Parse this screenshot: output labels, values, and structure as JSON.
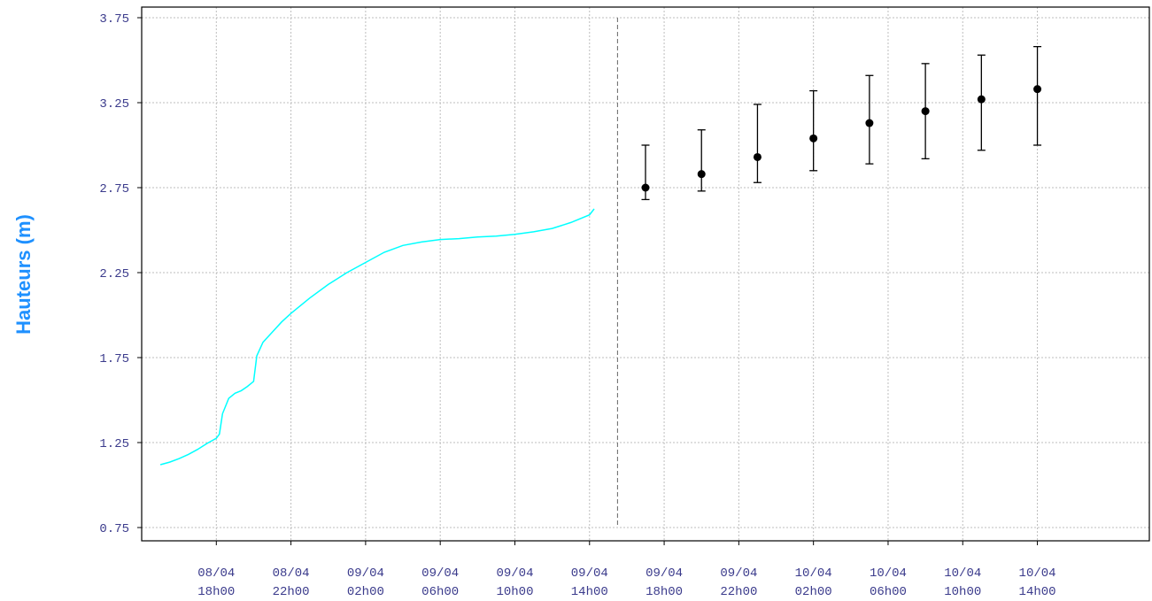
{
  "chart_data": {
    "type": "line",
    "title": "",
    "xlabel": "",
    "ylabel": "Hauteurs (m)",
    "ylim": [
      0.75,
      3.75
    ],
    "yticks": [
      0.75,
      1.25,
      1.75,
      2.25,
      2.75,
      3.25,
      3.75
    ],
    "xlim": [
      "2024-04-08T14:00",
      "2024-04-10T20:00"
    ],
    "xticks": [
      {
        "t": "2024-04-08T18:00",
        "label": [
          "08/04",
          "18h00"
        ]
      },
      {
        "t": "2024-04-08T22:00",
        "label": [
          "08/04",
          "22h00"
        ]
      },
      {
        "t": "2024-04-09T02:00",
        "label": [
          "09/04",
          "02h00"
        ]
      },
      {
        "t": "2024-04-09T06:00",
        "label": [
          "09/04",
          "06h00"
        ]
      },
      {
        "t": "2024-04-09T10:00",
        "label": [
          "09/04",
          "10h00"
        ]
      },
      {
        "t": "2024-04-09T14:00",
        "label": [
          "09/04",
          "14h00"
        ]
      },
      {
        "t": "2024-04-09T18:00",
        "label": [
          "09/04",
          "18h00"
        ]
      },
      {
        "t": "2024-04-09T22:00",
        "label": [
          "09/04",
          "22h00"
        ]
      },
      {
        "t": "2024-04-10T02:00",
        "label": [
          "10/04",
          "02h00"
        ]
      },
      {
        "t": "2024-04-10T06:00",
        "label": [
          "10/04",
          "06h00"
        ]
      },
      {
        "t": "2024-04-10T10:00",
        "label": [
          "10/04",
          "10h00"
        ]
      },
      {
        "t": "2024-04-10T14:00",
        "label": [
          "10/04",
          "14h00"
        ]
      }
    ],
    "grid": true,
    "forecast_start": "2024-04-09T15:30",
    "observed": {
      "color": "#00ffff",
      "points": [
        [
          "2024-04-08T15:00",
          1.12
        ],
        [
          "2024-04-08T15:30",
          1.135
        ],
        [
          "2024-04-08T16:00",
          1.155
        ],
        [
          "2024-04-08T16:30",
          1.18
        ],
        [
          "2024-04-08T17:00",
          1.21
        ],
        [
          "2024-04-08T17:30",
          1.245
        ],
        [
          "2024-04-08T18:00",
          1.275
        ],
        [
          "2024-04-08T18:10",
          1.3
        ],
        [
          "2024-04-08T18:20",
          1.42
        ],
        [
          "2024-04-08T18:40",
          1.51
        ],
        [
          "2024-04-08T19:00",
          1.54
        ],
        [
          "2024-04-08T19:20",
          1.555
        ],
        [
          "2024-04-08T19:40",
          1.58
        ],
        [
          "2024-04-08T20:00",
          1.61
        ],
        [
          "2024-04-08T20:10",
          1.76
        ],
        [
          "2024-04-08T20:30",
          1.84
        ],
        [
          "2024-04-08T21:00",
          1.9
        ],
        [
          "2024-04-08T21:30",
          1.96
        ],
        [
          "2024-04-08T22:00",
          2.01
        ],
        [
          "2024-04-08T23:00",
          2.1
        ],
        [
          "2024-04-09T00:00",
          2.18
        ],
        [
          "2024-04-09T01:00",
          2.25
        ],
        [
          "2024-04-09T02:00",
          2.31
        ],
        [
          "2024-04-09T03:00",
          2.37
        ],
        [
          "2024-04-09T04:00",
          2.41
        ],
        [
          "2024-04-09T05:00",
          2.43
        ],
        [
          "2024-04-09T06:00",
          2.445
        ],
        [
          "2024-04-09T07:00",
          2.45
        ],
        [
          "2024-04-09T08:00",
          2.46
        ],
        [
          "2024-04-09T09:00",
          2.465
        ],
        [
          "2024-04-09T10:00",
          2.475
        ],
        [
          "2024-04-09T11:00",
          2.49
        ],
        [
          "2024-04-09T12:00",
          2.51
        ],
        [
          "2024-04-09T13:00",
          2.545
        ],
        [
          "2024-04-09T14:00",
          2.59
        ],
        [
          "2024-04-09T14:15",
          2.625
        ]
      ]
    },
    "forecast": {
      "color": "#000000",
      "points": [
        {
          "t": "2024-04-09T17:00",
          "y": 2.75,
          "low": 2.68,
          "high": 3.0
        },
        {
          "t": "2024-04-09T20:00",
          "y": 2.83,
          "low": 2.73,
          "high": 3.09
        },
        {
          "t": "2024-04-09T23:00",
          "y": 2.93,
          "low": 2.78,
          "high": 3.24
        },
        {
          "t": "2024-04-10T02:00",
          "y": 3.04,
          "low": 2.85,
          "high": 3.32
        },
        {
          "t": "2024-04-10T05:00",
          "y": 3.13,
          "low": 2.89,
          "high": 3.41
        },
        {
          "t": "2024-04-10T08:00",
          "y": 3.2,
          "low": 2.92,
          "high": 3.48
        },
        {
          "t": "2024-04-10T11:00",
          "y": 3.27,
          "low": 2.97,
          "high": 3.53
        },
        {
          "t": "2024-04-10T14:00",
          "y": 3.33,
          "low": 3.0,
          "high": 3.58
        }
      ]
    }
  }
}
